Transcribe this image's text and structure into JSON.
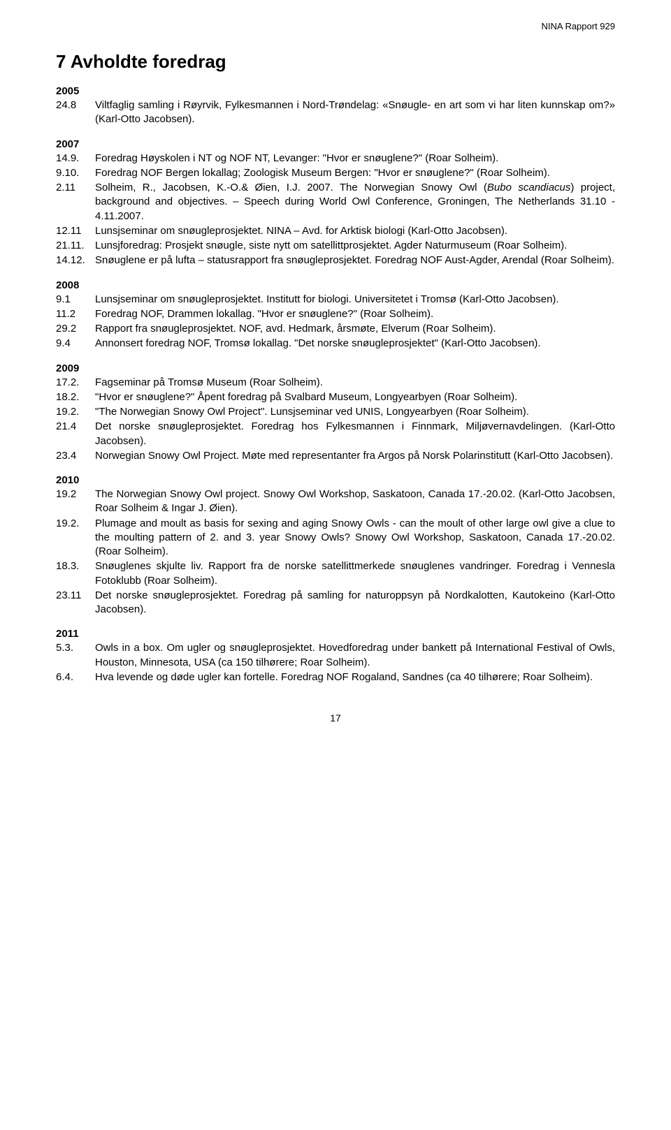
{
  "header": {
    "report_line": "NINA Rapport 929"
  },
  "title": "7 Avholdte foredrag",
  "sections": [
    {
      "year": "2005",
      "entries": [
        {
          "num": "24.8",
          "text": "Viltfaglig samling i Røyrvik, Fylkesmannen i Nord-Trøndelag: «Snøugle- en art som vi har liten kunnskap om?» (Karl-Otto Jacobsen)."
        }
      ]
    },
    {
      "year": "2007",
      "entries": [
        {
          "num": "14.9.",
          "text": "Foredrag Høyskolen i NT og NOF NT, Levanger: \"Hvor er snøuglene?\" (Roar Solheim)."
        },
        {
          "num": "9.10.",
          "text": "Foredrag NOF Bergen lokallag; Zoologisk Museum Bergen: \"Hvor er snøuglene?\" (Roar Solheim)."
        },
        {
          "num": "2.11",
          "text_parts": [
            "Solheim, R., Jacobsen, K.-O.& Øien, I.J. 2007. The Norwegian Snowy Owl (",
            {
              "italic": "Bubo scandiacus"
            },
            ") project, background and objectives. – Speech during World Owl Conference, Groningen, The Netherlands 31.10 - 4.11.2007."
          ]
        },
        {
          "num": "12.11",
          "text": "Lunsjseminar om snøugleprosjektet. NINA – Avd. for Arktisk biologi (Karl-Otto Jacobsen)."
        },
        {
          "num": "21.11.",
          "text": "Lunsjforedrag: Prosjekt snøugle, siste nytt om satellittprosjektet. Agder Naturmuseum (Roar Solheim)."
        },
        {
          "num": "14.12.",
          "text": "Snøuglene er på lufta – statusrapport fra snøugleprosjektet. Foredrag NOF Aust-Agder, Arendal (Roar Solheim)."
        }
      ]
    },
    {
      "year": "2008",
      "entries": [
        {
          "num": "9.1",
          "text": "Lunsjseminar om snøugleprosjektet. Institutt for biologi. Universitetet i Tromsø (Karl-Otto Jacobsen)."
        },
        {
          "num": "11.2",
          "text": "Foredrag NOF, Drammen lokallag. \"Hvor er snøuglene?\" (Roar Solheim)."
        },
        {
          "num": "29.2",
          "text": "Rapport fra snøugleprosjektet. NOF, avd. Hedmark, årsmøte, Elverum (Roar Solheim)."
        },
        {
          "num": "9.4",
          "text": "Annonsert foredrag NOF, Tromsø lokallag. \"Det norske snøugleprosjektet\" (Karl-Otto Jacobsen)."
        }
      ]
    },
    {
      "year": "2009",
      "entries": [
        {
          "num": "17.2.",
          "text": "Fagseminar på Tromsø Museum (Roar Solheim)."
        },
        {
          "num": "18.2.",
          "text": "\"Hvor er snøuglene?\" Åpent foredrag på Svalbard Museum, Longyearbyen (Roar Solheim)."
        },
        {
          "num": "19.2.",
          "text": "\"The Norwegian Snowy Owl Project\". Lunsjseminar ved UNIS, Longyearbyen (Roar Solheim)."
        },
        {
          "num": "21.4",
          "text": "Det norske snøugleprosjektet. Foredrag hos Fylkesmannen i Finnmark, Miljøvernavdelingen. (Karl-Otto Jacobsen)."
        },
        {
          "num": "23.4",
          "text": "Norwegian Snowy Owl Project. Møte med representanter fra Argos på Norsk Polarinstitutt (Karl-Otto Jacobsen)."
        }
      ]
    },
    {
      "year": "2010",
      "entries": [
        {
          "num": "19.2",
          "text": "The Norwegian Snowy Owl project. Snowy Owl Workshop, Saskatoon, Canada 17.-20.02. (Karl-Otto Jacobsen, Roar Solheim & Ingar J. Øien)."
        },
        {
          "num": "19.2.",
          "text": "Plumage and moult as basis for sexing and aging Snowy Owls - can the moult of other large owl give a clue to the moulting pattern of 2. and 3. year Snowy Owls? Snowy Owl Workshop, Saskatoon, Canada 17.-20.02. (Roar Solheim)."
        },
        {
          "num": "18.3.",
          "text": "Snøuglenes skjulte liv. Rapport fra de norske satellittmerkede snøuglenes vandringer. Foredrag i Vennesla Fotoklubb (Roar Solheim)."
        },
        {
          "num": "23.11",
          "text": "Det norske snøugleprosjektet. Foredrag på samling for naturoppsyn på Nordkalotten, Kautokeino (Karl-Otto Jacobsen)."
        }
      ]
    },
    {
      "year": "2011",
      "entries": [
        {
          "num": "5.3.",
          "text": "Owls in a box. Om ugler og snøugleprosjektet. Hovedforedrag under bankett på International Festival of Owls, Houston, Minnesota, USA (ca 150 tilhørere; Roar Solheim)."
        },
        {
          "num": "6.4.",
          "text": "Hva levende og døde ugler kan fortelle. Foredrag NOF Rogaland, Sandnes (ca 40 tilhørere; Roar Solheim)."
        }
      ]
    }
  ],
  "footer": {
    "page_number": "17"
  }
}
